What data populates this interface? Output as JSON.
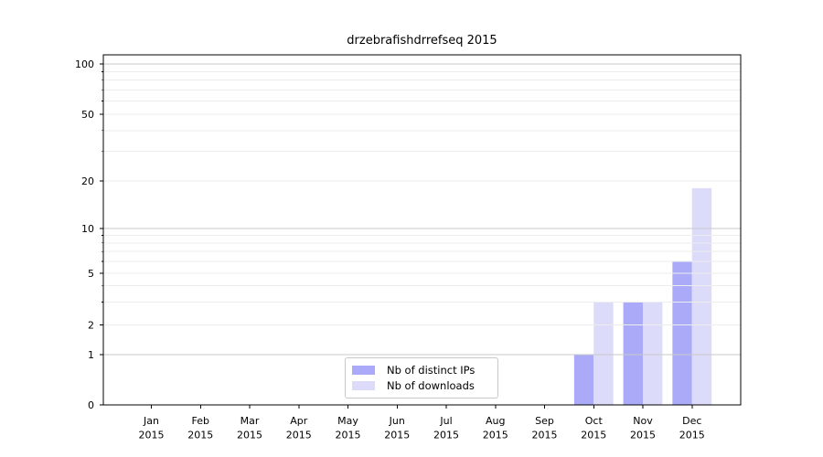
{
  "chart_data": {
    "type": "bar",
    "title": "drzebrafishdrrefseq 2015",
    "x_axis": {
      "categories": [
        "Jan",
        "Feb",
        "Mar",
        "Apr",
        "May",
        "Jun",
        "Jul",
        "Aug",
        "Sep",
        "Oct",
        "Nov",
        "Dec"
      ],
      "year_label": "2015"
    },
    "y_axis": {
      "scale": "symlog-like",
      "ylim": [
        0,
        110
      ],
      "ticks": [
        {
          "value": 0,
          "label": "0",
          "pos": 0.0,
          "grid": "none"
        },
        {
          "value": 1,
          "label": "1",
          "pos": 0.1436,
          "grid": "major"
        },
        {
          "value": 2,
          "label": "2",
          "pos": 0.2285,
          "grid": "minor"
        },
        {
          "value": 5,
          "label": "5",
          "pos": 0.376,
          "grid": "minor"
        },
        {
          "value": 10,
          "label": "10",
          "pos": 0.5039,
          "grid": "major"
        },
        {
          "value": 20,
          "label": "20",
          "pos": 0.6397,
          "grid": "minor"
        },
        {
          "value": 50,
          "label": "50",
          "pos": 0.8303,
          "grid": "minor"
        },
        {
          "value": 100,
          "label": "100",
          "pos": 0.9739,
          "grid": "major"
        }
      ],
      "minor_grid_values": [
        3,
        4,
        6,
        7,
        8,
        9,
        30,
        40,
        60,
        70,
        80,
        90
      ]
    },
    "series": [
      {
        "name": "Nb of distinct IPs",
        "color": "#aaaaf8",
        "values": [
          0,
          0,
          0,
          0,
          0,
          0,
          0,
          0,
          0,
          1,
          3,
          6
        ]
      },
      {
        "name": "Nb of downloads",
        "color": "#dcdcfa",
        "values": [
          0,
          0,
          0,
          0,
          0,
          0,
          0,
          0,
          0,
          3,
          3,
          18
        ]
      }
    ],
    "legend": {
      "position": "lower center"
    },
    "grid": {
      "major_color": "#c9c9c9",
      "minor_color": "#ededed"
    },
    "colors": {
      "spine": "#000000",
      "text": "#000000",
      "background": "#ffffff"
    }
  }
}
